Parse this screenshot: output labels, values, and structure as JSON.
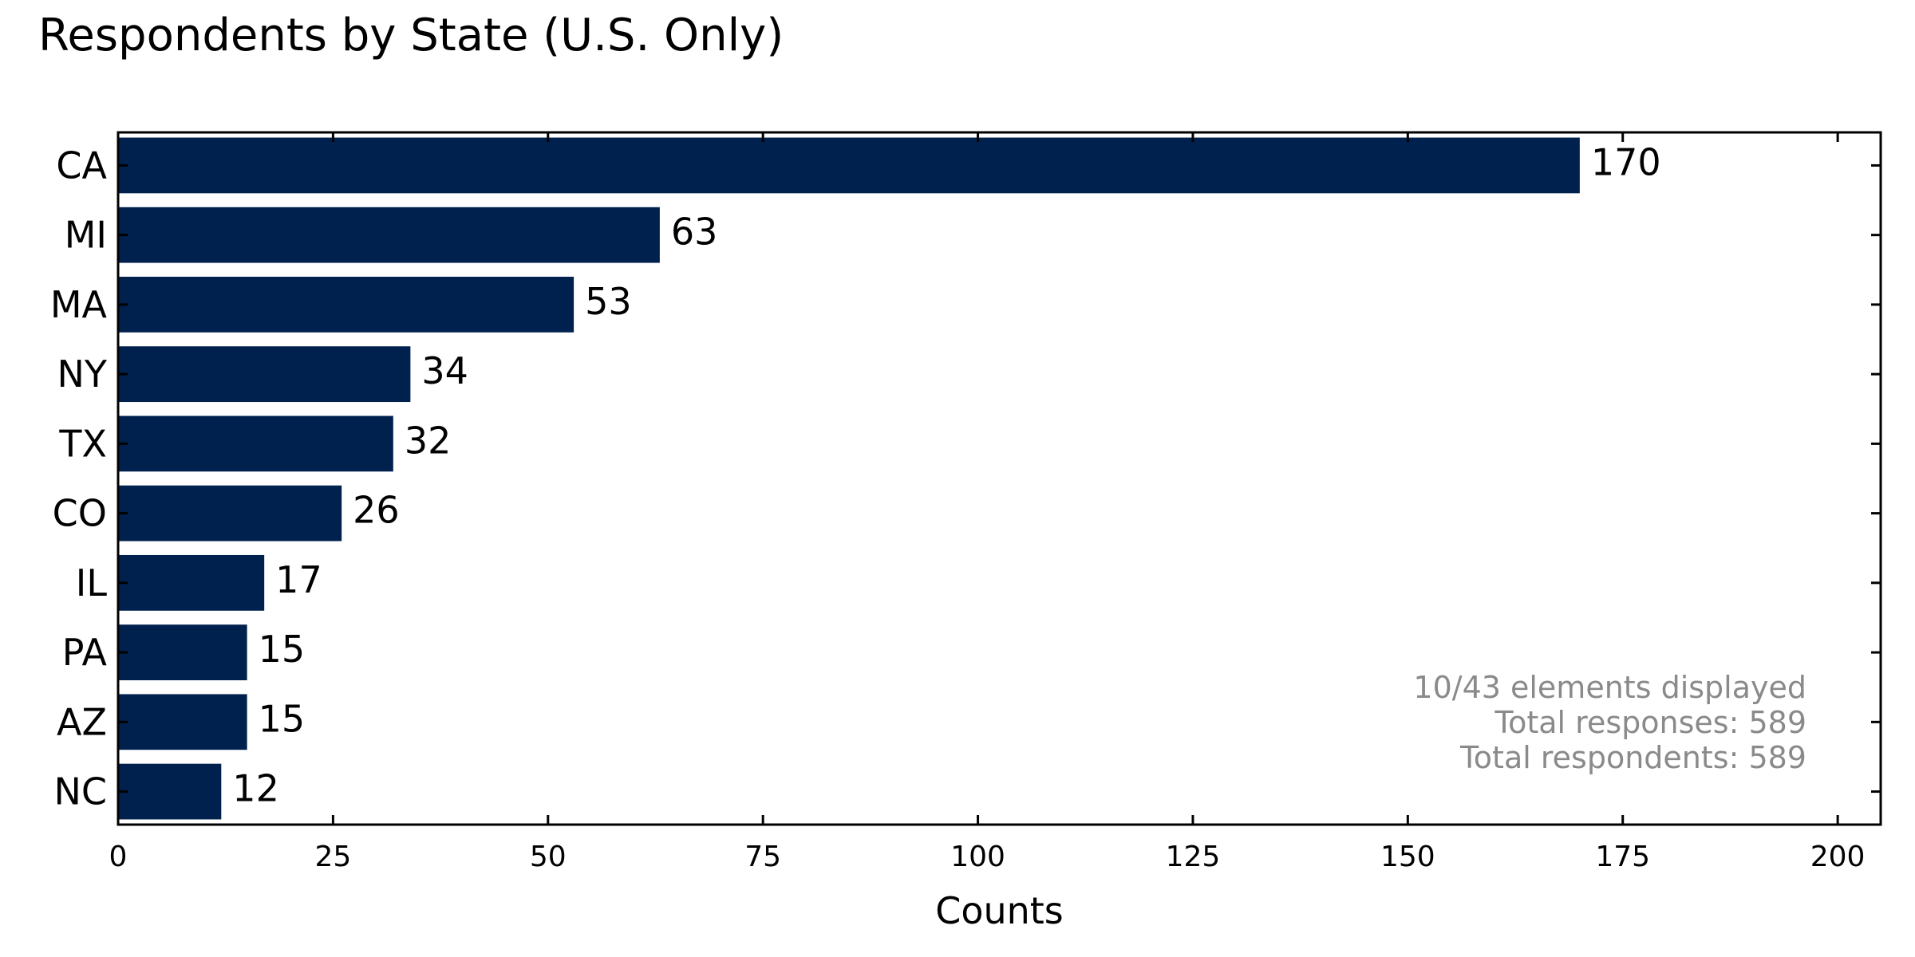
{
  "chart_data": {
    "type": "bar",
    "orientation": "horizontal",
    "title": "Respondents by State (U.S. Only)",
    "xlabel": "Counts",
    "ylabel": "",
    "categories": [
      "CA",
      "MI",
      "MA",
      "NY",
      "TX",
      "CO",
      "IL",
      "PA",
      "AZ",
      "NC"
    ],
    "values": [
      170,
      63,
      53,
      34,
      32,
      26,
      17,
      15,
      15,
      12
    ],
    "xlim": [
      0,
      205
    ],
    "xticks": [
      0,
      25,
      50,
      75,
      100,
      125,
      150,
      175,
      200
    ],
    "grid": false,
    "bar_color": "#00214d",
    "annotation": [
      "10/43 elements displayed",
      "Total responses: 589",
      "Total respondents: 589"
    ],
    "annotation_color": "#8a8a8a"
  }
}
